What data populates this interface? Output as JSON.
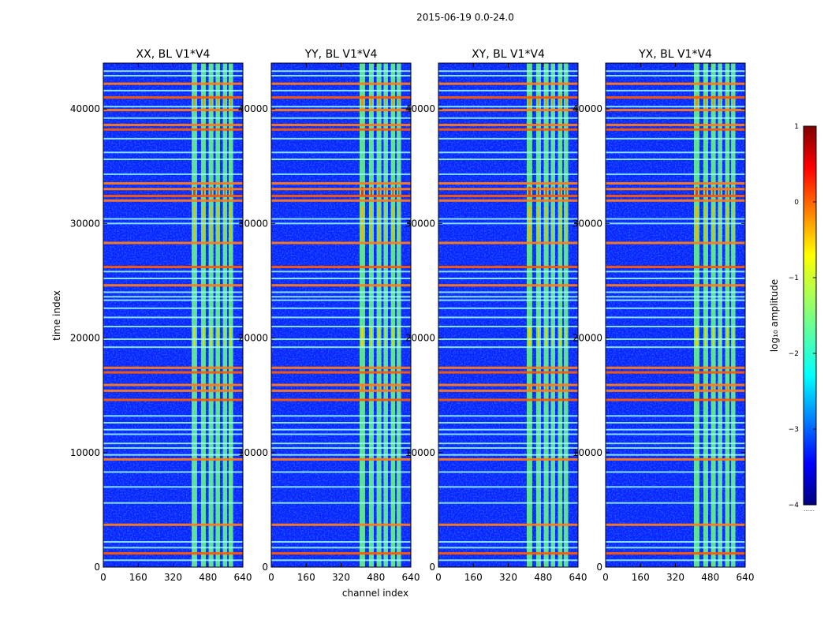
{
  "chart_data": {
    "type": "heatmap",
    "suptitle": "2015-06-19 0.0-24.0",
    "xlabel": "channel index",
    "ylabel": "time index",
    "xlim": [
      0,
      640
    ],
    "ylim": [
      0,
      44000
    ],
    "xticks": [
      0,
      160,
      320,
      480,
      640
    ],
    "yticks": [
      0,
      10000,
      20000,
      30000,
      40000
    ],
    "panels": [
      {
        "title": "XX, BL V1*V4"
      },
      {
        "title": "YY, BL V1*V4"
      },
      {
        "title": "XY, BL V1*V4"
      },
      {
        "title": "YX, BL V1*V4"
      }
    ],
    "colorbar": {
      "label": "log₁₀ amplitude",
      "ticks": [
        "1",
        "0",
        "−1",
        "−2",
        "−3",
        "−4"
      ],
      "range": [
        -4,
        1
      ],
      "colormap": "jet",
      "note": "……"
    },
    "features": {
      "bright_channel_bands": [
        [
          405,
          430
        ],
        [
          448,
          470
        ],
        [
          483,
          505
        ],
        [
          515,
          535
        ],
        [
          548,
          568
        ],
        [
          575,
          595
        ]
      ],
      "gap_channels": [
        [
          436,
          442
        ],
        [
          475,
          480
        ],
        [
          508,
          513
        ],
        [
          538,
          545
        ],
        [
          570,
          573
        ]
      ],
      "strong_rfi_times": [
        1200,
        3700,
        9400,
        14600,
        15400,
        15900,
        17000,
        17400,
        24600,
        26200,
        28300,
        32000,
        32400,
        33000,
        33500,
        38200,
        38600,
        39900,
        41000,
        42200
      ],
      "weak_rfi_times": [
        600,
        1700,
        2200,
        5600,
        7000,
        8300,
        9800,
        10400,
        10800,
        11600,
        12000,
        12600,
        13200,
        19200,
        19900,
        21000,
        21800,
        22600,
        23300,
        23600,
        24000,
        25200,
        25800,
        30000,
        30400,
        34300,
        35600,
        36200,
        37400,
        39200,
        40200,
        41600,
        42900,
        43300
      ]
    }
  }
}
